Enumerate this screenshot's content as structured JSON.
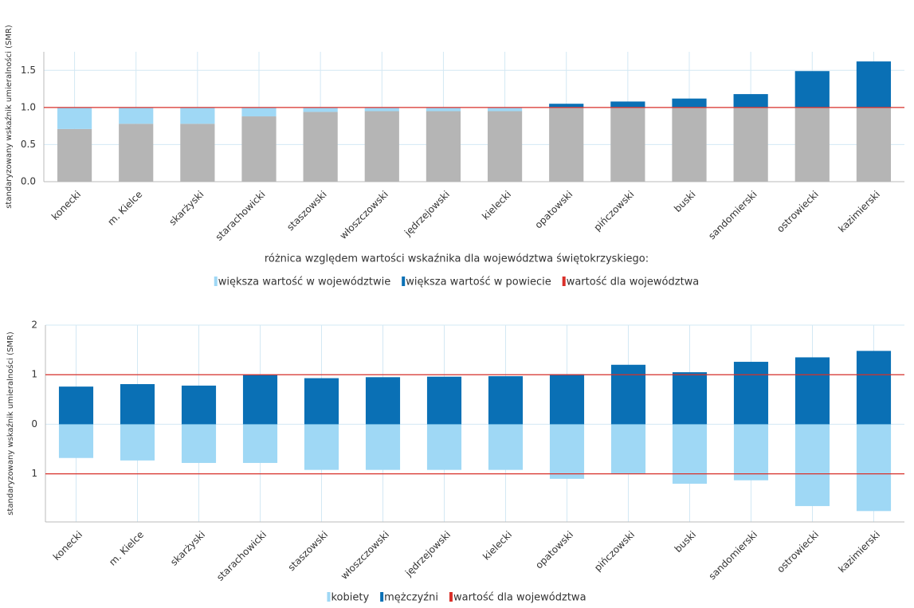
{
  "chart_data": [
    {
      "type": "bar_reference",
      "y_label": "standaryzowany wskaźnik umieralności (SMR)",
      "x_label": "różnica względem wartości wskaźnika dla województwa świętokrzyskiego:",
      "categories": [
        "konecki",
        "m. Kielce",
        "skarżyski",
        "starachowicki",
        "staszowski",
        "włoszczowski",
        "jędrzejowski",
        "kielecki",
        "opatowski",
        "pińczowski",
        "buski",
        "sandomierski",
        "ostrowiecki",
        "kazimierski"
      ],
      "values": [
        0.71,
        0.78,
        0.78,
        0.88,
        0.94,
        0.95,
        0.95,
        0.95,
        1.05,
        1.08,
        1.12,
        1.18,
        1.49,
        1.62
      ],
      "color": "#b5b5b5",
      "series": [
        {
          "name": "większa wartość w województwie",
          "color": "#9fd8f5"
        },
        {
          "name": "większa wartość w powiecie",
          "color": "#0a70b5"
        }
      ],
      "reference": 1.0,
      "reference_name": "wartość dla województwa",
      "reference_color": "#d9302a",
      "ylim": [
        0,
        1.75
      ],
      "yticks": [
        {
          "value": 0,
          "label": "0.0"
        },
        {
          "value": 0.5,
          "label": "0.5"
        },
        {
          "value": 1,
          "label": "1.0"
        },
        {
          "value": 1.5,
          "label": "1.5"
        }
      ],
      "grid": true
    },
    {
      "type": "bar_diverging",
      "y_label": "standaryzowany wskaźnik umieralności (SMR)",
      "categories": [
        "konecki",
        "m. Kielce",
        "skarżyski",
        "starachowicki",
        "staszowski",
        "włoszczowski",
        "jędrzejowski",
        "kielecki",
        "opatowski",
        "pińczowski",
        "buski",
        "sandomierski",
        "ostrowiecki",
        "kazimierski"
      ],
      "series": [
        {
          "name": "kobiety",
          "color": "#9fd8f5",
          "values": [
            -0.68,
            -0.73,
            -0.78,
            -0.78,
            -0.92,
            -0.92,
            -0.92,
            -0.92,
            -1.1,
            -1.0,
            -1.2,
            -1.13,
            -1.65,
            -1.75
          ]
        },
        {
          "name": "mężczyźni",
          "color": "#0a70b5",
          "values": [
            0.76,
            0.81,
            0.78,
            1.0,
            0.93,
            0.95,
            0.96,
            0.97,
            1.01,
            1.2,
            1.05,
            1.26,
            1.35,
            1.48
          ]
        }
      ],
      "reference_lines": [
        1,
        -1
      ],
      "reference_name": "wartość dla województwa",
      "reference_color": "#d9302a",
      "ylim": [
        -1.97,
        2
      ],
      "yticks": [
        2,
        1,
        0,
        {
          "value": -1,
          "label": "1"
        }
      ],
      "grid": true
    }
  ]
}
